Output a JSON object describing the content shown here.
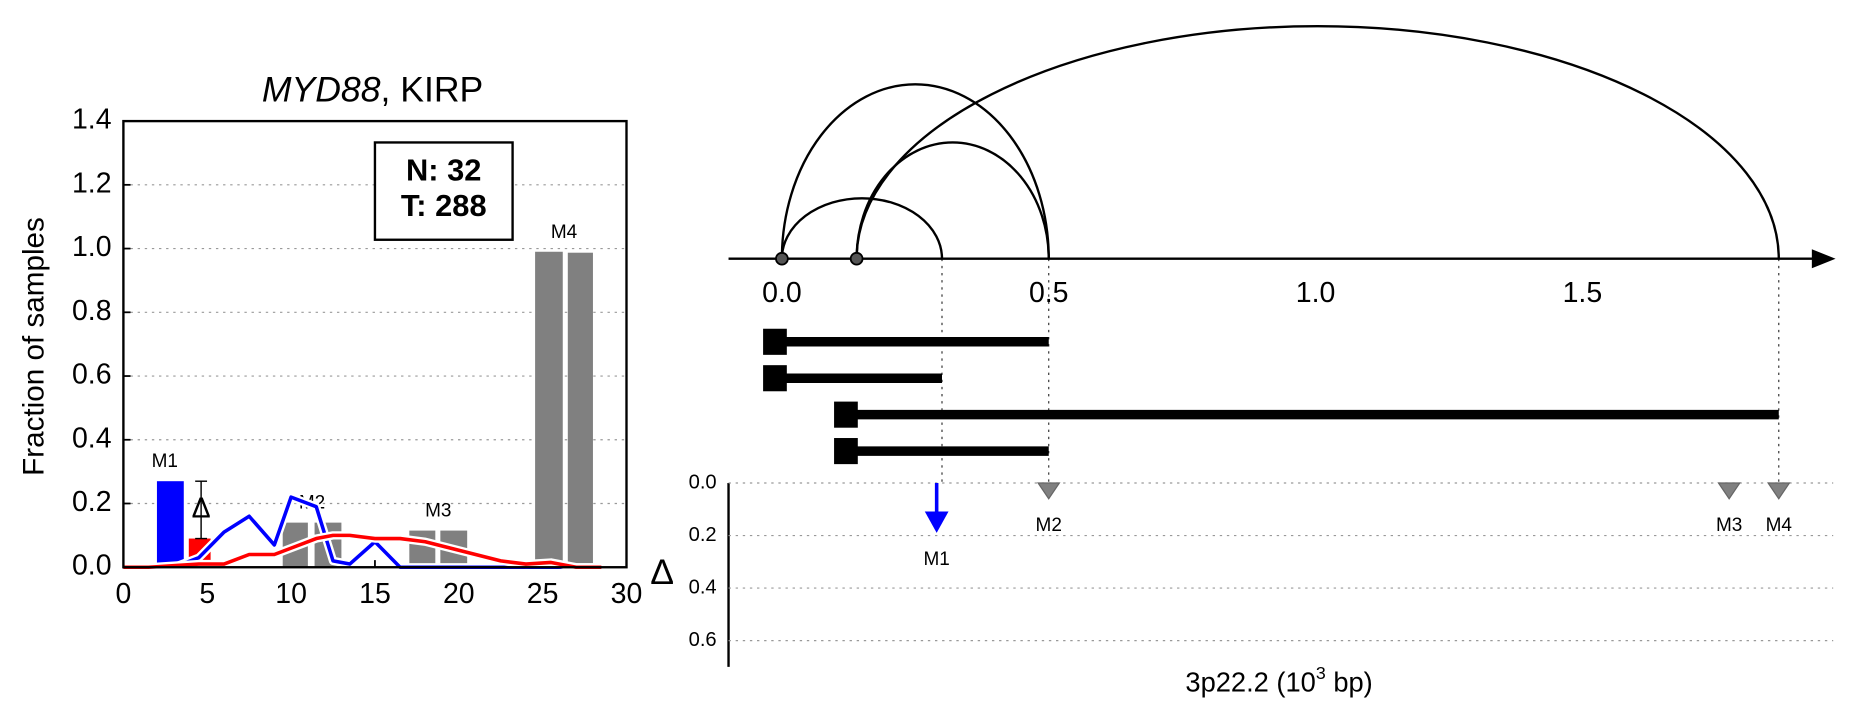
{
  "chart_data": [
    {
      "type": "bar",
      "title_italic": "MYD88",
      "title": ", KIRP",
      "ylabel": "Fraction of samples",
      "xlim": [
        0,
        30
      ],
      "xticks": [
        0,
        5,
        10,
        15,
        20,
        25,
        30
      ],
      "ylim": [
        0,
        1.4
      ],
      "yticks": [
        {
          "value": 0,
          "label": "0.0"
        },
        {
          "value": 0.2,
          "label": "0.2"
        },
        {
          "value": 0.4,
          "label": "0.4"
        },
        {
          "value": 0.6,
          "label": "0.6"
        },
        {
          "value": 0.8,
          "label": "0.8"
        },
        {
          "value": 1.0,
          "label": "1.0"
        },
        {
          "value": 1.2,
          "label": "1.2"
        },
        {
          "value": 1.4,
          "label": "1.4"
        }
      ],
      "grid": true,
      "groups": [
        {
          "label": "M1",
          "color": "#000000",
          "bars": [
            {
              "x": [
                2.0,
                3.6
              ],
              "value": 0.27,
              "color": "#0000ff"
            },
            {
              "x": [
                3.9,
                5.2
              ],
              "value": 0.09,
              "color": "#ff0000"
            }
          ]
        },
        {
          "label": "M2",
          "color": "#888888",
          "bars": [
            {
              "x": [
                9.5,
                11.0
              ],
              "value": 0.14,
              "color": "#808080"
            },
            {
              "x": [
                11.4,
                13.0
              ],
              "value": 0.14,
              "color": "#808080"
            }
          ]
        },
        {
          "label": "M3",
          "color": "#888888",
          "bars": [
            {
              "x": [
                17.05,
                18.6
              ],
              "value": 0.115,
              "color": "#808080"
            },
            {
              "x": [
                18.9,
                20.5
              ],
              "value": 0.115,
              "color": "#808080"
            }
          ]
        },
        {
          "label": "M4",
          "color": "#888888",
          "bars": [
            {
              "x": [
                24.55,
                26.2
              ],
              "value": 0.99,
              "color": "#808080"
            },
            {
              "x": [
                26.5,
                28.0
              ],
              "value": 0.987,
              "color": "#808080"
            }
          ]
        }
      ],
      "delta_label": "Δ",
      "x": [
        0,
        1.5,
        3,
        4.5,
        6,
        7.5,
        9,
        10,
        11.5,
        12.5,
        13.5,
        15,
        16.5,
        18,
        19.5,
        21,
        22.5,
        24,
        25.5,
        27,
        28.5
      ],
      "lines": [
        {
          "color": "#0000ff",
          "values": [
            0,
            0,
            0,
            0.03,
            0.11,
            0.16,
            0.07,
            0.22,
            0.19,
            0.02,
            0.01,
            0.08,
            0,
            0,
            0,
            0,
            0,
            0,
            0,
            0,
            0
          ]
        },
        {
          "color": "#ff0000",
          "values": [
            0,
            0,
            0.005,
            0.01,
            0.01,
            0.04,
            0.04,
            0.06,
            0.09,
            0.1,
            0.1,
            0.09,
            0.09,
            0.08,
            0.06,
            0.04,
            0.02,
            0.01,
            0.015,
            0,
            0
          ]
        }
      ],
      "annotation": [
        "N: 32",
        "T: 288"
      ]
    },
    {
      "type": "arc",
      "xlim": [
        -0.1,
        1.97
      ],
      "xticks": [
        {
          "value": 0,
          "label": "0.0"
        },
        {
          "value": 0.5,
          "label": "0.5"
        },
        {
          "value": 1.0,
          "label": "1.0"
        },
        {
          "value": 1.5,
          "label": "1.5"
        }
      ],
      "nodes": [
        0,
        0.14
      ],
      "arcs": [
        {
          "start": 0,
          "end": 0.5,
          "height": 0.75
        },
        {
          "start": 0,
          "end": 0.3,
          "height": 0.26
        },
        {
          "start": 0.14,
          "end": 0.5,
          "height": 0.5
        },
        {
          "start": 0.14,
          "end": 1.868,
          "height": 1.0
        }
      ],
      "transcripts": [
        {
          "start": -0.013,
          "end": 0.5
        },
        {
          "start": -0.013,
          "end": 0.3
        },
        {
          "start": 0.12,
          "end": 1.868
        },
        {
          "start": 0.12,
          "end": 0.5
        }
      ],
      "ylabel": "Δ",
      "ylim": [
        0,
        0.7
      ],
      "yticks": [
        {
          "value": 0,
          "label": "0.0"
        },
        {
          "value": 0.2,
          "label": "0.2"
        },
        {
          "value": 0.4,
          "label": "0.4"
        },
        {
          "value": 0.6,
          "label": "0.6"
        }
      ],
      "markers": [
        {
          "label": "M1",
          "x": 0.29,
          "value": 0.19,
          "color": "#0000ff",
          "shape": "arrow"
        },
        {
          "label": "M2",
          "x": 0.5,
          "value": 0.06,
          "color": "#808080",
          "shape": "triangle"
        },
        {
          "label": "M3",
          "x": 1.775,
          "value": 0.06,
          "color": "#808080",
          "shape": "triangle"
        },
        {
          "label": "M4",
          "x": 1.868,
          "value": 0.06,
          "color": "#808080",
          "shape": "triangle"
        }
      ],
      "xlabel": {
        "text": "3p22.2 (10",
        "sup": "3",
        "rest": " bp)"
      }
    }
  ]
}
